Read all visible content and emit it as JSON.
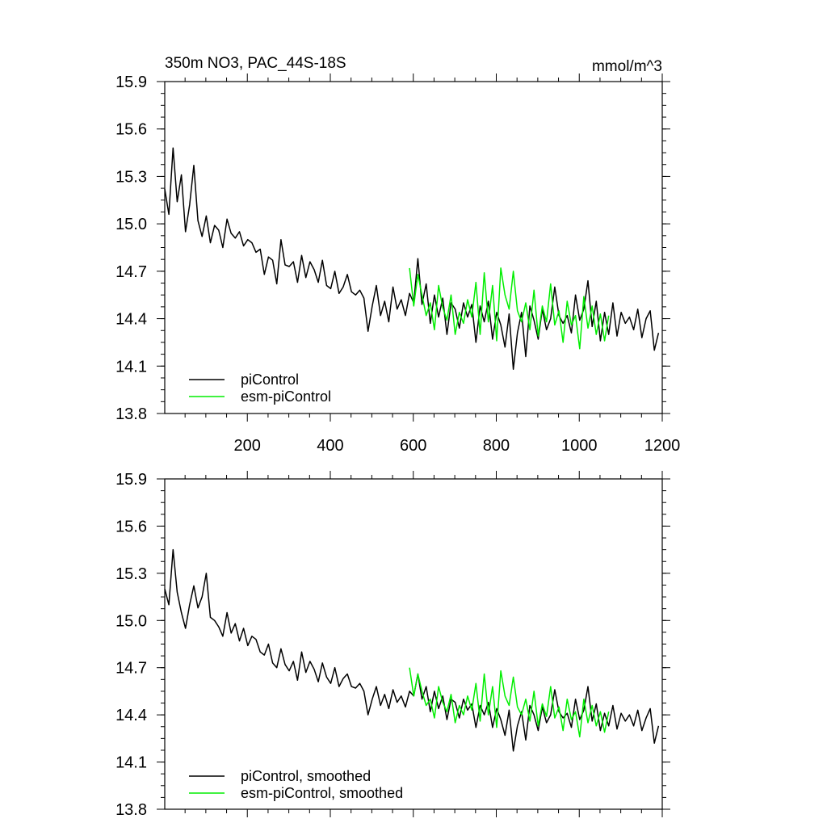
{
  "chart_data": [
    {
      "type": "line",
      "title": "350m NO3, PAC_44S-18S",
      "units": "mmol/m^3",
      "xlim": [
        1,
        1200
      ],
      "ylim": [
        13.8,
        15.9
      ],
      "xticks": [
        200,
        400,
        600,
        800,
        1000,
        1200
      ],
      "yticks": [
        13.8,
        14.1,
        14.4,
        14.7,
        15.0,
        15.3,
        15.6,
        15.9
      ],
      "ytick_labels": [
        "13.8",
        "14.1",
        "14.4",
        "14.7",
        "15.0",
        "15.3",
        "15.6",
        "15.9"
      ],
      "xtick_labels": [
        "200",
        "400",
        "600",
        "800",
        "1000",
        "1200"
      ],
      "legend_position": "bottom-left",
      "series": [
        {
          "name": "piControl",
          "color": "#000000",
          "x_start": 1,
          "x_step": 10,
          "values": [
            15.22,
            15.06,
            15.48,
            15.14,
            15.31,
            14.95,
            15.12,
            15.37,
            15.02,
            14.92,
            15.05,
            14.88,
            14.99,
            14.96,
            14.85,
            15.03,
            14.94,
            14.91,
            14.95,
            14.86,
            14.9,
            14.88,
            14.82,
            14.84,
            14.68,
            14.79,
            14.77,
            14.62,
            14.9,
            14.74,
            14.73,
            14.76,
            14.63,
            14.8,
            14.66,
            14.76,
            14.71,
            14.63,
            14.77,
            14.61,
            14.59,
            14.7,
            14.56,
            14.6,
            14.68,
            14.57,
            14.55,
            14.58,
            14.53,
            14.32,
            14.48,
            14.61,
            14.42,
            14.51,
            14.38,
            14.6,
            14.46,
            14.52,
            14.42,
            14.56,
            14.5,
            14.78,
            14.49,
            14.62,
            14.37,
            14.55,
            14.41,
            14.53,
            14.3,
            14.5,
            14.46,
            14.34,
            14.5,
            14.41,
            14.49,
            14.25,
            14.48,
            14.38,
            14.51,
            14.27,
            14.44,
            14.36,
            14.22,
            14.43,
            14.08,
            14.31,
            14.44,
            14.16,
            14.48,
            14.39,
            14.27,
            14.46,
            14.33,
            14.4,
            14.6,
            14.42,
            14.37,
            14.42,
            14.31,
            14.55,
            14.39,
            14.46,
            14.64,
            14.35,
            14.51,
            14.26,
            14.44,
            14.3,
            14.5,
            14.29,
            14.44,
            14.37,
            14.41,
            14.33,
            14.46,
            14.28,
            14.4,
            14.45,
            14.2,
            14.31
          ]
        },
        {
          "name": "esm-piControl",
          "color": "#00ee00",
          "x_start": 591,
          "x_step": 10,
          "values": [
            14.72,
            14.48,
            14.68,
            14.55,
            14.42,
            14.5,
            14.33,
            14.61,
            14.47,
            14.39,
            14.55,
            14.3,
            14.44,
            14.37,
            14.52,
            14.41,
            14.63,
            14.3,
            14.69,
            14.38,
            14.61,
            14.26,
            14.72,
            14.55,
            14.46,
            14.7,
            14.45,
            14.38,
            14.5,
            14.33,
            14.58,
            14.29,
            14.48,
            14.38,
            14.62,
            14.36,
            14.45,
            14.25,
            14.51,
            14.36,
            14.42,
            14.21,
            14.54,
            14.34,
            14.48,
            14.3,
            14.43,
            14.26,
            14.42
          ]
        }
      ]
    },
    {
      "type": "line",
      "title": "",
      "xlim": [
        1,
        1200
      ],
      "ylim": [
        13.8,
        15.9
      ],
      "yticks": [
        13.8,
        14.1,
        14.4,
        14.7,
        15.0,
        15.3,
        15.6,
        15.9
      ],
      "ytick_labels": [
        "13.8",
        "14.1",
        "14.4",
        "14.7",
        "15.0",
        "15.3",
        "15.6",
        "15.9"
      ],
      "legend_position": "bottom-left",
      "series": [
        {
          "name": "piControl, smoothed",
          "color": "#000000",
          "x_start": 1,
          "x_step": 10,
          "values": [
            15.2,
            15.1,
            15.45,
            15.18,
            15.05,
            14.95,
            15.1,
            15.22,
            15.08,
            15.15,
            15.3,
            15.02,
            15.0,
            14.96,
            14.9,
            15.05,
            14.92,
            14.98,
            14.87,
            14.95,
            14.84,
            14.9,
            14.88,
            14.8,
            14.78,
            14.85,
            14.73,
            14.7,
            14.82,
            14.72,
            14.68,
            14.74,
            14.62,
            14.8,
            14.67,
            14.74,
            14.69,
            14.61,
            14.73,
            14.64,
            14.6,
            14.7,
            14.58,
            14.63,
            14.66,
            14.58,
            14.57,
            14.6,
            14.55,
            14.4,
            14.5,
            14.58,
            14.46,
            14.53,
            14.44,
            14.56,
            14.48,
            14.52,
            14.45,
            14.55,
            14.52,
            14.66,
            14.5,
            14.58,
            14.42,
            14.55,
            14.44,
            14.52,
            14.37,
            14.5,
            14.48,
            14.38,
            14.5,
            14.43,
            14.47,
            14.32,
            14.46,
            14.4,
            14.48,
            14.32,
            14.44,
            14.37,
            14.27,
            14.43,
            14.17,
            14.33,
            14.42,
            14.24,
            14.46,
            14.4,
            14.3,
            14.45,
            14.35,
            14.4,
            14.56,
            14.42,
            14.38,
            14.41,
            14.32,
            14.5,
            14.37,
            14.43,
            14.58,
            14.36,
            14.47,
            14.3,
            14.41,
            14.33,
            14.46,
            14.31,
            14.41,
            14.36,
            14.4,
            14.33,
            14.43,
            14.3,
            14.38,
            14.44,
            14.22,
            14.33
          ]
        },
        {
          "name": "esm-piControl, smoothed",
          "color": "#00ee00",
          "x_start": 591,
          "x_step": 10,
          "values": [
            14.7,
            14.52,
            14.66,
            14.55,
            14.46,
            14.5,
            14.38,
            14.58,
            14.48,
            14.42,
            14.53,
            14.35,
            14.46,
            14.4,
            14.52,
            14.43,
            14.6,
            14.36,
            14.66,
            14.4,
            14.58,
            14.32,
            14.68,
            14.52,
            14.46,
            14.64,
            14.45,
            14.4,
            14.5,
            14.36,
            14.55,
            14.33,
            14.47,
            14.39,
            14.58,
            14.38,
            14.45,
            14.3,
            14.5,
            14.37,
            14.42,
            14.26,
            14.5,
            14.35,
            14.46,
            14.33,
            14.42,
            14.29,
            14.42
          ]
        }
      ]
    }
  ]
}
